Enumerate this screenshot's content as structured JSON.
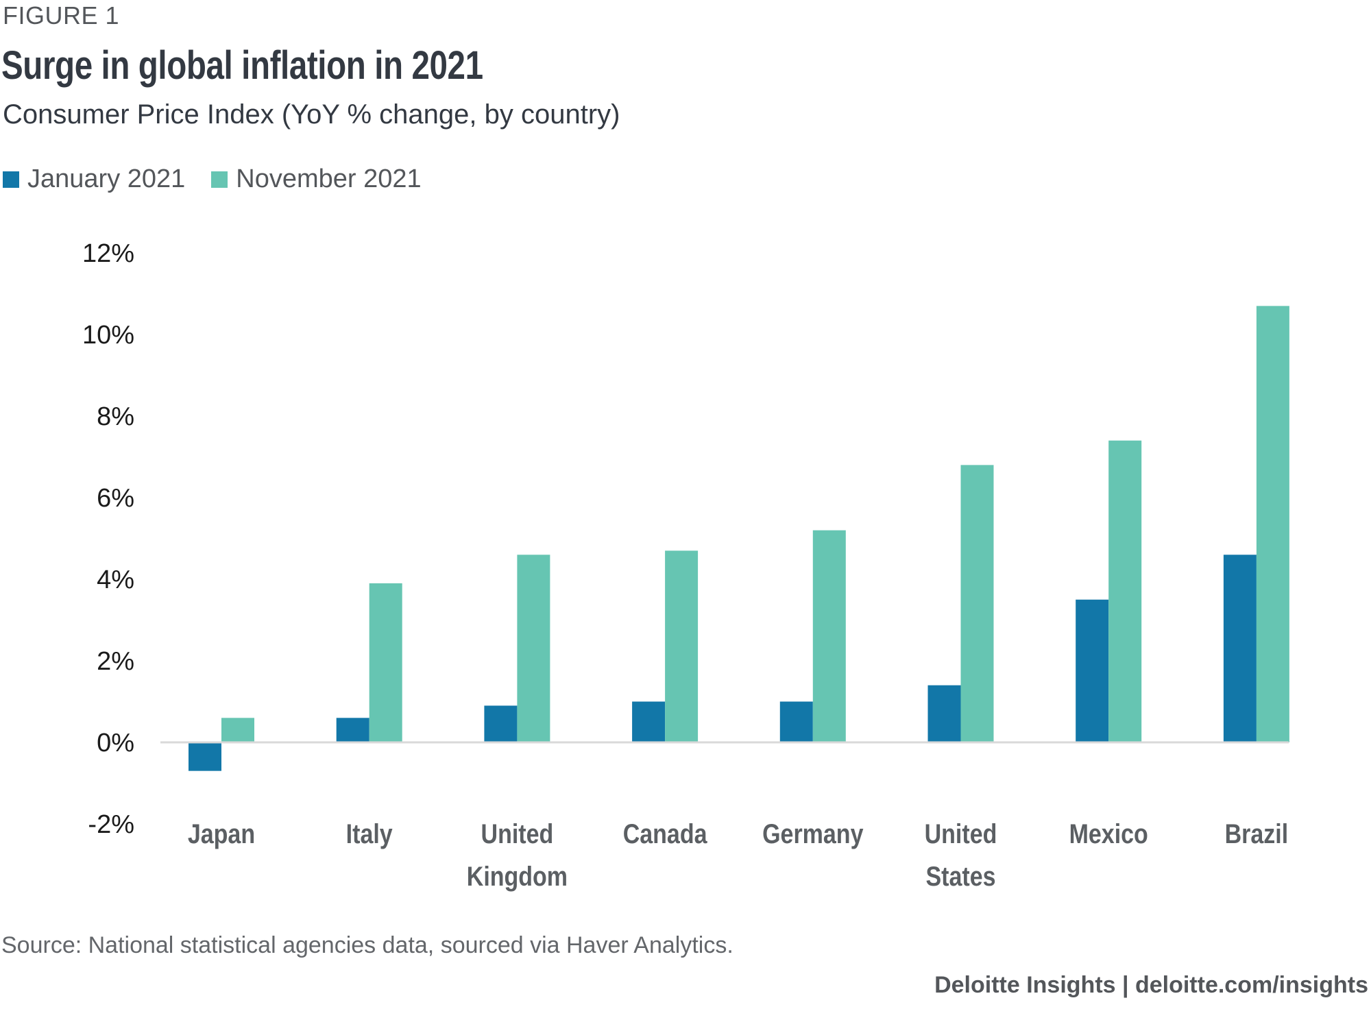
{
  "figure_label": "FIGURE 1",
  "title": "Surge in global inflation in 2021",
  "subtitle": "Consumer Price Index (YoY % change, by country)",
  "source": "Source: National statistical agencies data, sourced via Haver Analytics.",
  "credit": "Deloitte Insights | deloitte.com/insights",
  "colors": {
    "january": "#1277a8",
    "november": "#66c5b2",
    "axis": "#d9d9d9"
  },
  "chart_data": {
    "type": "bar",
    "title": "Surge in global inflation in 2021",
    "subtitle": "Consumer Price Index (YoY % change, by country)",
    "xlabel": "",
    "ylabel": "",
    "ylim": [
      -2,
      12
    ],
    "yticks": [
      12,
      10,
      8,
      6,
      4,
      2,
      0,
      -2
    ],
    "ytick_labels": [
      "12%",
      "10%",
      "8%",
      "6%",
      "4%",
      "2%",
      "0%",
      "-2%"
    ],
    "grid": false,
    "legend_position": "top-left",
    "categories": [
      "Japan",
      "Italy",
      "United Kingdom",
      "Canada",
      "Germany",
      "United States",
      "Mexico",
      "Brazil"
    ],
    "category_label_lines": [
      [
        "Japan"
      ],
      [
        "Italy"
      ],
      [
        "United",
        "Kingdom"
      ],
      [
        "Canada"
      ],
      [
        "Germany"
      ],
      [
        "United",
        "States"
      ],
      [
        "Mexico"
      ],
      [
        "Brazil"
      ]
    ],
    "series": [
      {
        "name": "January 2021",
        "values": [
          -0.7,
          0.6,
          0.9,
          1.0,
          1.0,
          1.4,
          3.5,
          4.6
        ]
      },
      {
        "name": "November 2021",
        "values": [
          0.6,
          3.9,
          4.6,
          4.7,
          5.2,
          6.8,
          7.4,
          10.7
        ]
      }
    ]
  }
}
